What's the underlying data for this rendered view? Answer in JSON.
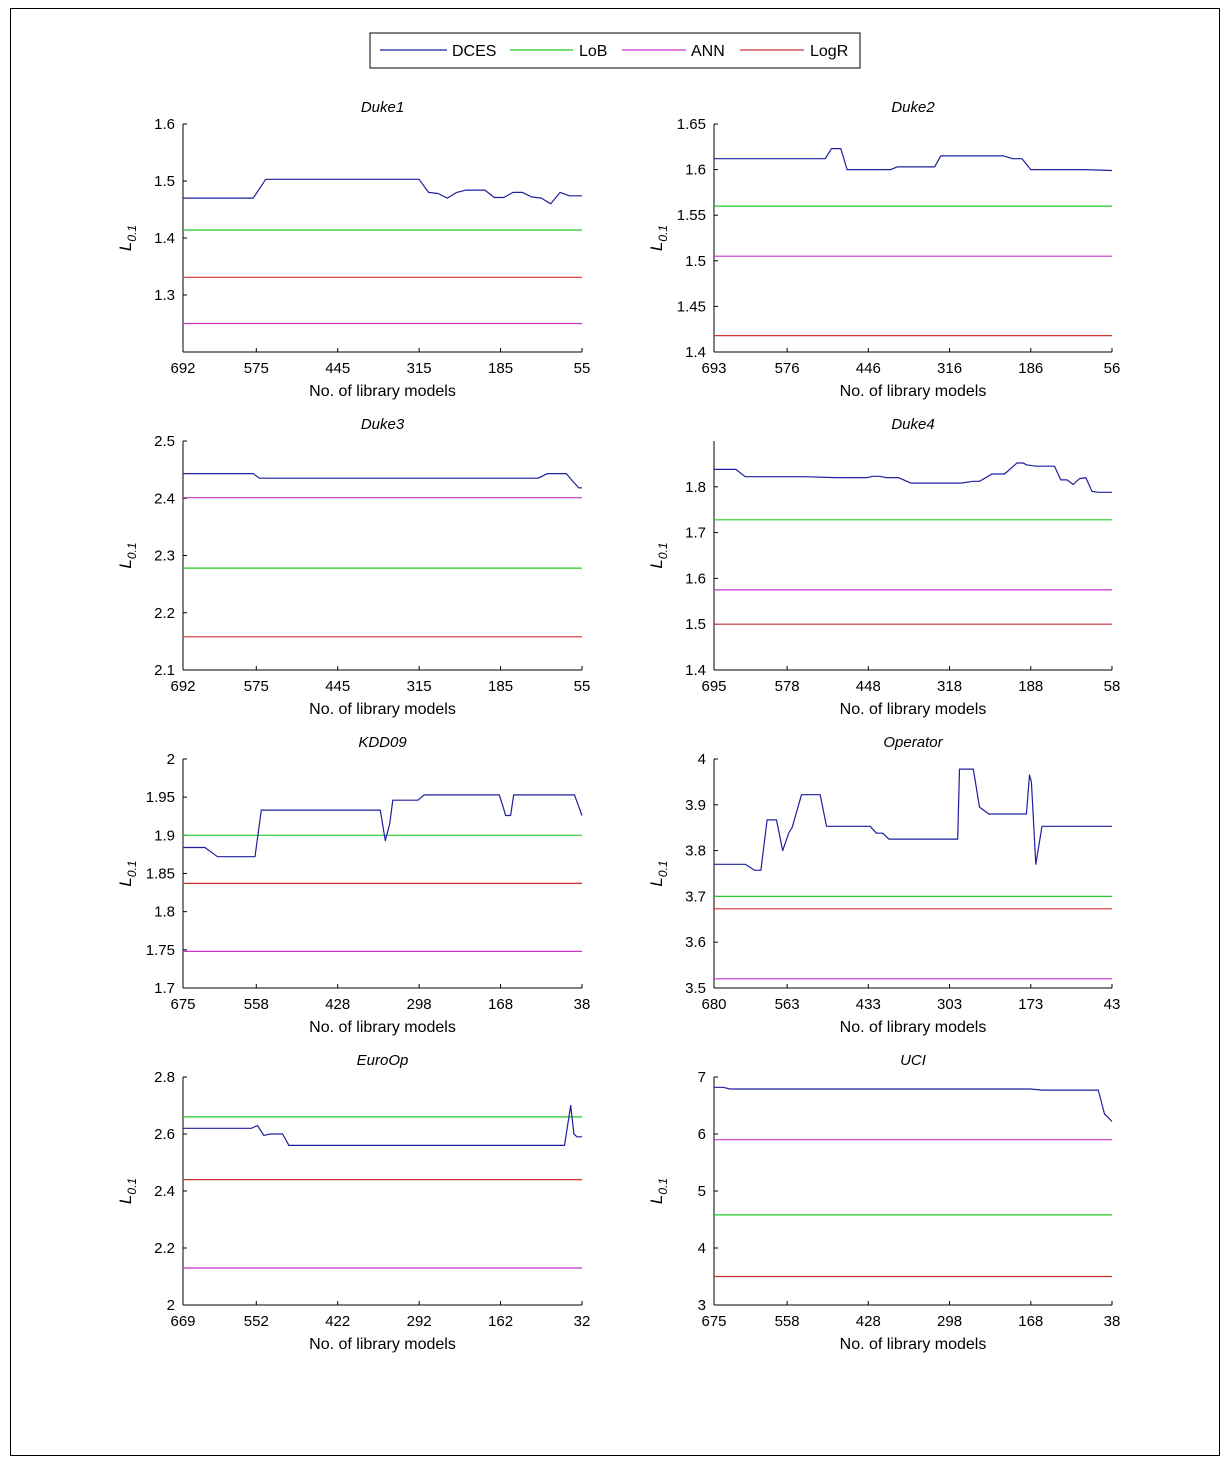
{
  "legend": {
    "entries": [
      "DCES",
      "LoB",
      "ANN",
      "LogR"
    ],
    "colors": [
      "#1f1f9e",
      "#22cc22",
      "#cc33cc",
      "#cc3333"
    ],
    "placement": "top-center"
  },
  "chart_data": [
    {
      "type": "line",
      "title": "Duke1",
      "xlabel": "No. of library models",
      "ylabel": "L0.1",
      "xlim": [
        692,
        55
      ],
      "ylim": [
        1.2,
        1.6
      ],
      "xticks": [
        692,
        575,
        445,
        315,
        185,
        55
      ],
      "yticks": [
        1.3,
        1.4,
        1.5,
        1.6
      ],
      "series": [
        {
          "name": "DCES",
          "x": [
            692,
            670,
            640,
            610,
            580,
            560,
            540,
            520,
            500,
            480,
            460,
            440,
            420,
            400,
            380,
            360,
            340,
            320,
            315,
            300,
            285,
            270,
            255,
            240,
            225,
            210,
            195,
            180,
            165,
            150,
            135,
            120,
            105,
            90,
            75,
            55
          ],
          "y": [
            1.47,
            1.47,
            1.47,
            1.47,
            1.47,
            1.503,
            1.503,
            1.503,
            1.503,
            1.503,
            1.503,
            1.503,
            1.503,
            1.503,
            1.503,
            1.503,
            1.503,
            1.503,
            1.503,
            1.48,
            1.478,
            1.47,
            1.48,
            1.484,
            1.484,
            1.484,
            1.471,
            1.471,
            1.48,
            1.48,
            1.472,
            1.47,
            1.46,
            1.48,
            1.474,
            1.474
          ]
        },
        {
          "name": "LoB",
          "x": [
            692,
            55
          ],
          "y": [
            1.414,
            1.414
          ]
        },
        {
          "name": "ANN",
          "x": [
            692,
            55
          ],
          "y": [
            1.25,
            1.25
          ]
        },
        {
          "name": "LogR",
          "x": [
            692,
            55
          ],
          "y": [
            1.331,
            1.331
          ]
        }
      ]
    },
    {
      "type": "line",
      "title": "Duke2",
      "xlabel": "No. of library models",
      "ylabel": "L0.1",
      "xlim": [
        693,
        56
      ],
      "ylim": [
        1.4,
        1.65
      ],
      "xticks": [
        693,
        576,
        446,
        316,
        186,
        56
      ],
      "yticks": [
        1.4,
        1.45,
        1.5,
        1.55,
        1.6,
        1.65
      ],
      "series": [
        {
          "name": "DCES",
          "x": [
            693,
            650,
            600,
            560,
            515,
            505,
            490,
            480,
            470,
            440,
            410,
            400,
            380,
            350,
            340,
            330,
            300,
            260,
            240,
            230,
            215,
            200,
            186,
            150,
            100,
            56
          ],
          "y": [
            1.612,
            1.612,
            1.612,
            1.612,
            1.612,
            1.623,
            1.623,
            1.6,
            1.6,
            1.6,
            1.6,
            1.603,
            1.603,
            1.603,
            1.603,
            1.615,
            1.615,
            1.615,
            1.615,
            1.615,
            1.612,
            1.612,
            1.6,
            1.6,
            1.6,
            1.599
          ]
        },
        {
          "name": "LoB",
          "x": [
            693,
            56
          ],
          "y": [
            1.56,
            1.56
          ]
        },
        {
          "name": "ANN",
          "x": [
            693,
            56
          ],
          "y": [
            1.505,
            1.505
          ]
        },
        {
          "name": "LogR",
          "x": [
            693,
            56
          ],
          "y": [
            1.418,
            1.418
          ]
        }
      ]
    },
    {
      "type": "line",
      "title": "Duke3",
      "xlabel": "No. of library models",
      "ylabel": "L0.1",
      "xlim": [
        692,
        55
      ],
      "ylim": [
        2.1,
        2.5
      ],
      "xticks": [
        692,
        575,
        445,
        315,
        185,
        55
      ],
      "yticks": [
        2.1,
        2.2,
        2.3,
        2.4,
        2.5
      ],
      "series": [
        {
          "name": "DCES",
          "x": [
            692,
            600,
            580,
            570,
            450,
            300,
            200,
            125,
            110,
            100,
            90,
            80,
            70,
            60,
            55
          ],
          "y": [
            2.443,
            2.443,
            2.443,
            2.435,
            2.435,
            2.435,
            2.435,
            2.435,
            2.443,
            2.443,
            2.443,
            2.443,
            2.43,
            2.418,
            2.418
          ]
        },
        {
          "name": "LoB",
          "x": [
            692,
            55
          ],
          "y": [
            2.278,
            2.278
          ]
        },
        {
          "name": "ANN",
          "x": [
            692,
            55
          ],
          "y": [
            2.401,
            2.401
          ]
        },
        {
          "name": "LogR",
          "x": [
            692,
            55
          ],
          "y": [
            2.158,
            2.158
          ]
        }
      ]
    },
    {
      "type": "line",
      "title": "Duke4",
      "xlabel": "No. of library models",
      "ylabel": "L0.1",
      "xlim": [
        695,
        58
      ],
      "ylim": [
        1.4,
        1.9
      ],
      "xticks": [
        695,
        578,
        448,
        318,
        188,
        58
      ],
      "yticks": [
        1.4,
        1.5,
        1.6,
        1.7,
        1.8
      ],
      "series": [
        {
          "name": "DCES",
          "x": [
            695,
            660,
            645,
            600,
            550,
            500,
            480,
            460,
            450,
            440,
            430,
            420,
            410,
            400,
            380,
            350,
            320,
            300,
            280,
            270,
            250,
            240,
            230,
            210,
            200,
            195,
            180,
            160,
            150,
            140,
            130,
            120,
            110,
            100,
            90,
            80,
            70,
            58
          ],
          "y": [
            1.838,
            1.838,
            1.822,
            1.822,
            1.822,
            1.82,
            1.82,
            1.82,
            1.82,
            1.823,
            1.823,
            1.82,
            1.82,
            1.82,
            1.808,
            1.808,
            1.808,
            1.808,
            1.812,
            1.812,
            1.828,
            1.828,
            1.828,
            1.852,
            1.852,
            1.848,
            1.845,
            1.845,
            1.845,
            1.815,
            1.815,
            1.805,
            1.818,
            1.82,
            1.79,
            1.788,
            1.788,
            1.788
          ]
        },
        {
          "name": "LoB",
          "x": [
            695,
            58
          ],
          "y": [
            1.728,
            1.728
          ]
        },
        {
          "name": "ANN",
          "x": [
            695,
            58
          ],
          "y": [
            1.575,
            1.575
          ]
        },
        {
          "name": "LogR",
          "x": [
            695,
            58
          ],
          "y": [
            1.5,
            1.5
          ]
        }
      ]
    },
    {
      "type": "line",
      "title": "KDD09",
      "xlabel": "No. of library models",
      "ylabel": "L0.1",
      "xlim": [
        675,
        38
      ],
      "ylim": [
        1.7,
        2.0
      ],
      "xticks": [
        675,
        558,
        428,
        298,
        168,
        38
      ],
      "yticks": [
        1.7,
        1.75,
        1.8,
        1.85,
        1.9,
        1.95,
        2.0
      ],
      "series": [
        {
          "name": "DCES",
          "x": [
            675,
            655,
            640,
            620,
            600,
            570,
            560,
            550,
            500,
            450,
            400,
            360,
            352,
            345,
            340,
            320,
            300,
            290,
            270,
            250,
            220,
            200,
            180,
            170,
            165,
            160,
            152,
            147,
            130,
            110,
            90,
            70,
            50,
            38
          ],
          "y": [
            1.884,
            1.884,
            1.884,
            1.872,
            1.872,
            1.872,
            1.872,
            1.933,
            1.933,
            1.933,
            1.933,
            1.933,
            1.893,
            1.915,
            1.946,
            1.946,
            1.946,
            1.953,
            1.953,
            1.953,
            1.953,
            1.953,
            1.953,
            1.953,
            1.94,
            1.926,
            1.926,
            1.953,
            1.953,
            1.953,
            1.953,
            1.953,
            1.953,
            1.926
          ]
        },
        {
          "name": "LoB",
          "x": [
            675,
            38
          ],
          "y": [
            1.9,
            1.9
          ]
        },
        {
          "name": "ANN",
          "x": [
            675,
            38
          ],
          "y": [
            1.748,
            1.748
          ]
        },
        {
          "name": "LogR",
          "x": [
            675,
            38
          ],
          "y": [
            1.837,
            1.837
          ]
        }
      ]
    },
    {
      "type": "line",
      "title": "Operator",
      "xlabel": "No. of library models",
      "ylabel": "L0.1",
      "xlim": [
        680,
        43
      ],
      "ylim": [
        3.5,
        4.0
      ],
      "xticks": [
        680,
        563,
        433,
        303,
        173,
        43
      ],
      "yticks": [
        3.5,
        3.6,
        3.7,
        3.8,
        3.9,
        4.0
      ],
      "series": [
        {
          "name": "DCES",
          "x": [
            680,
            640,
            630,
            615,
            605,
            595,
            580,
            570,
            560,
            555,
            540,
            530,
            510,
            500,
            480,
            450,
            430,
            420,
            410,
            400,
            390,
            300,
            290,
            287,
            275,
            265,
            255,
            240,
            220,
            210,
            200,
            190,
            180,
            175,
            172,
            165,
            155,
            150,
            130,
            100,
            70,
            43
          ],
          "y": [
            3.77,
            3.77,
            3.77,
            3.757,
            3.757,
            3.867,
            3.867,
            3.8,
            3.84,
            3.85,
            3.922,
            3.922,
            3.922,
            3.853,
            3.853,
            3.853,
            3.853,
            3.838,
            3.838,
            3.825,
            3.825,
            3.825,
            3.825,
            3.978,
            3.978,
            3.978,
            3.895,
            3.88,
            3.88,
            3.88,
            3.88,
            3.88,
            3.88,
            3.965,
            3.95,
            3.77,
            3.853,
            3.853,
            3.853,
            3.853,
            3.853,
            3.853
          ]
        },
        {
          "name": "LoB",
          "x": [
            680,
            43
          ],
          "y": [
            3.7,
            3.7
          ]
        },
        {
          "name": "ANN",
          "x": [
            680,
            43
          ],
          "y": [
            3.52,
            3.52
          ]
        },
        {
          "name": "LogR",
          "x": [
            680,
            43
          ],
          "y": [
            3.673,
            3.673
          ]
        }
      ]
    },
    {
      "type": "line",
      "title": "EuroOp",
      "xlabel": "No. of library models",
      "ylabel": "L0.1",
      "xlim": [
        669,
        32
      ],
      "ylim": [
        2.0,
        2.8
      ],
      "xticks": [
        669,
        552,
        422,
        292,
        162,
        32
      ],
      "yticks": [
        2.0,
        2.2,
        2.4,
        2.6,
        2.8
      ],
      "series": [
        {
          "name": "DCES",
          "x": [
            669,
            600,
            560,
            550,
            540,
            530,
            510,
            500,
            490,
            450,
            400,
            300,
            200,
            100,
            60,
            50,
            45,
            40,
            32
          ],
          "y": [
            2.62,
            2.62,
            2.62,
            2.63,
            2.595,
            2.6,
            2.6,
            2.56,
            2.56,
            2.56,
            2.56,
            2.56,
            2.56,
            2.56,
            2.56,
            2.7,
            2.6,
            2.59,
            2.59
          ]
        },
        {
          "name": "LoB",
          "x": [
            669,
            32
          ],
          "y": [
            2.66,
            2.66
          ]
        },
        {
          "name": "ANN",
          "x": [
            669,
            32
          ],
          "y": [
            2.13,
            2.13
          ]
        },
        {
          "name": "LogR",
          "x": [
            669,
            32
          ],
          "y": [
            2.44,
            2.44
          ]
        }
      ]
    },
    {
      "type": "line",
      "title": "UCI",
      "xlabel": "No. of library models",
      "ylabel": "L0.1",
      "xlim": [
        675,
        38
      ],
      "ylim": [
        3,
        7
      ],
      "xticks": [
        675,
        558,
        428,
        298,
        168,
        38
      ],
      "yticks": [
        3,
        4,
        5,
        6,
        7
      ],
      "series": [
        {
          "name": "DCES",
          "x": [
            675,
            660,
            650,
            600,
            500,
            400,
            300,
            200,
            168,
            150,
            100,
            60,
            50,
            45,
            38
          ],
          "y": [
            6.82,
            6.82,
            6.79,
            6.79,
            6.79,
            6.79,
            6.79,
            6.79,
            6.79,
            6.77,
            6.77,
            6.77,
            6.35,
            6.3,
            6.22
          ]
        },
        {
          "name": "LoB",
          "x": [
            675,
            38
          ],
          "y": [
            4.58,
            4.58
          ]
        },
        {
          "name": "ANN",
          "x": [
            675,
            38
          ],
          "y": [
            5.9,
            5.9
          ]
        },
        {
          "name": "LogR",
          "x": [
            675,
            38
          ],
          "y": [
            3.5,
            3.5
          ]
        }
      ]
    }
  ]
}
